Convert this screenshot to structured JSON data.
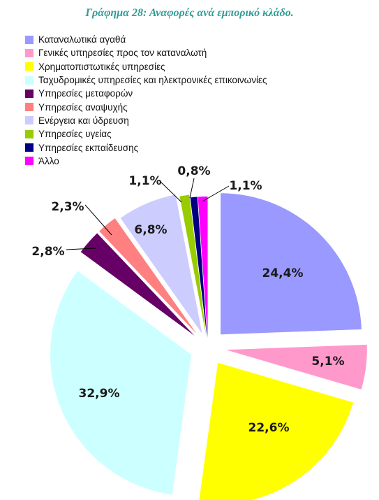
{
  "title": "Γράφημα 28: Αναφορές ανά εμπορικό κλάδο.",
  "chart_data": {
    "type": "pie",
    "title": "Γράφημα 28: Αναφορές ανά εμπορικό κλάδο.",
    "legend_position": "top-left",
    "exploded": true,
    "slices": [
      {
        "name": "Καταναλωτικά αγαθά",
        "value": 24.4,
        "label": "24,4%",
        "color": "#9999ff"
      },
      {
        "name": "Γενικές υπηρεσίες προς τον καταναλωτή",
        "value": 5.1,
        "label": "5,1%",
        "color": "#ff99cc"
      },
      {
        "name": "Χρηματοπιστωτικές υπηρεσίες",
        "value": 22.6,
        "label": "22,6%",
        "color": "#ffff00"
      },
      {
        "name": "Ταχυδρομικές υπηρεσίες και ηλεκτρονικές επικοινωνίες",
        "value": 32.9,
        "label": "32,9%",
        "color": "#ccffff"
      },
      {
        "name": "Υπηρεσίες μεταφορών",
        "value": 2.8,
        "label": "2,8%",
        "color": "#660066"
      },
      {
        "name": "Υπηρεσίες αναψυχής",
        "value": 2.3,
        "label": "2,3%",
        "color": "#ff8080"
      },
      {
        "name": "Ενέργεια και ύδρευση",
        "value": 6.8,
        "label": "6,8%",
        "color": "#ccccff"
      },
      {
        "name": "Υπηρεσίες υγείας",
        "value": 1.1,
        "label": "1,1%",
        "color": "#99cc00"
      },
      {
        "name": "Υπηρεσίες εκπαίδευσης",
        "value": 0.8,
        "label": "0,8%",
        "color": "#000080"
      },
      {
        "name": "Άλλο",
        "value": 1.1,
        "label": "1,1%",
        "color": "#ff00ff"
      }
    ]
  }
}
